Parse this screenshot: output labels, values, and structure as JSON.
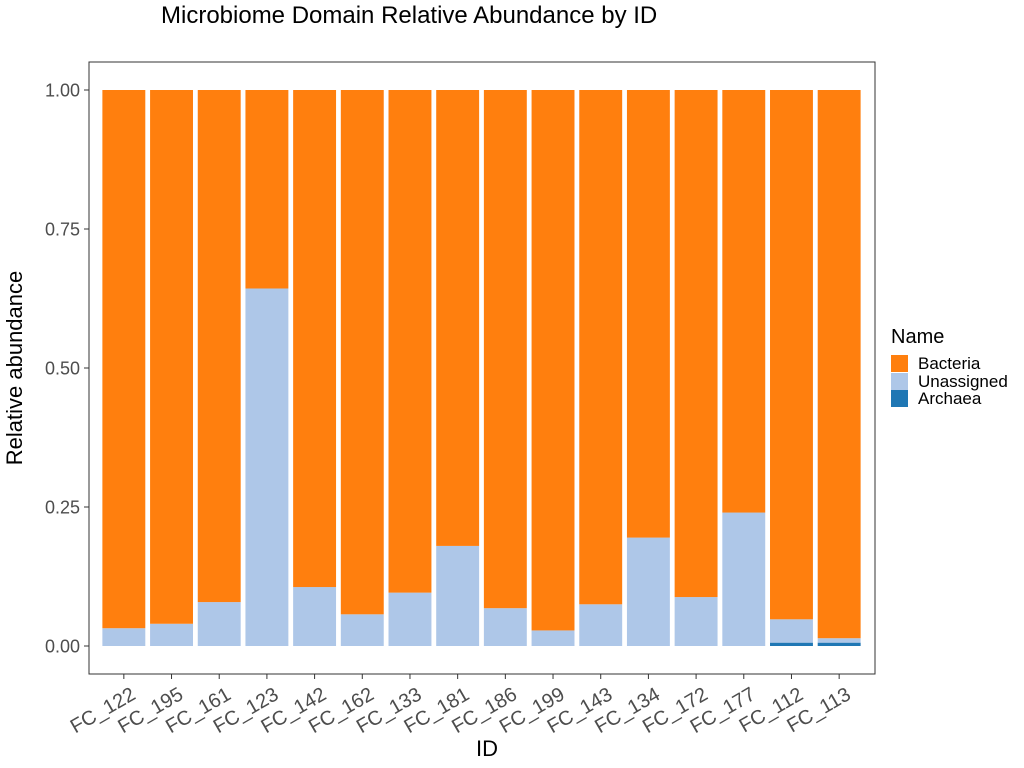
{
  "chart_data": {
    "type": "bar",
    "stacked": true,
    "title": "Microbiome Domain Relative Abundance by ID",
    "xlabel": "ID",
    "ylabel": "Relative abundance",
    "ylim": [
      0,
      1
    ],
    "yticks": [
      "0.00",
      "0.25",
      "0.50",
      "0.75",
      "1.00"
    ],
    "grid": false,
    "legend_position": "right",
    "legend_title": "Name",
    "categories": [
      "FC_122",
      "FC_195",
      "FC_161",
      "FC_123",
      "FC_142",
      "FC_162",
      "FC_133",
      "FC_181",
      "FC_186",
      "FC_199",
      "FC_143",
      "FC_134",
      "FC_172",
      "FC_177",
      "FC_112",
      "FC_113"
    ],
    "series": [
      {
        "name": "Archaea",
        "color": "#1f77b4",
        "values": [
          0,
          0,
          0,
          0,
          0,
          0,
          0,
          0,
          0,
          0,
          0,
          0,
          0,
          0,
          0.006,
          0.006
        ]
      },
      {
        "name": "Unassigned",
        "color": "#aec7e8",
        "values": [
          0.032,
          0.04,
          0.079,
          0.643,
          0.106,
          0.057,
          0.096,
          0.18,
          0.068,
          0.028,
          0.075,
          0.195,
          0.088,
          0.24,
          0.042,
          0.008
        ]
      },
      {
        "name": "Bacteria",
        "color": "#ff7f0e",
        "values": [
          0.968,
          0.96,
          0.921,
          0.357,
          0.894,
          0.943,
          0.904,
          0.82,
          0.932,
          0.972,
          0.925,
          0.805,
          0.912,
          0.76,
          0.952,
          0.986
        ]
      }
    ],
    "legend_order": [
      "Bacteria",
      "Unassigned",
      "Archaea"
    ]
  }
}
